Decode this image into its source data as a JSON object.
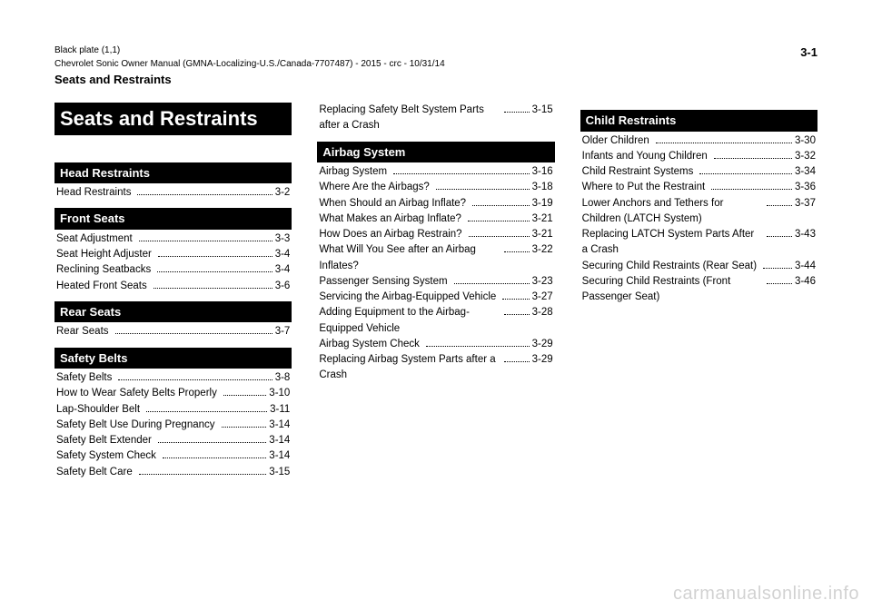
{
  "meta": {
    "headerLine1": "Black plate (1,1)",
    "headerLine2": "Chevrolet Sonic Owner Manual (GMNA-Localizing-U.S./Canada-7707487) - 2015 - crc - 10/31/14",
    "breadcrumb": "Seats and Restraints",
    "pageTop": "3-1",
    "chapterTitle": "Seats and Restraints",
    "watermark": "carmanualsonline.info"
  },
  "columns": [
    {
      "blocks": [
        {
          "type": "chapter"
        },
        {
          "type": "section",
          "text": "Head Restraints"
        },
        {
          "type": "item",
          "label": "Head Restraints",
          "page": "3-2"
        },
        {
          "type": "section",
          "text": "Front Seats"
        },
        {
          "type": "item",
          "label": "Seat Adjustment",
          "page": "3-3"
        },
        {
          "type": "item",
          "label": "Seat Height Adjuster",
          "page": "3-4"
        },
        {
          "type": "item",
          "label": "Reclining Seatbacks",
          "page": "3-4"
        },
        {
          "type": "item",
          "label": "Heated Front Seats",
          "page": "3-6"
        },
        {
          "type": "section",
          "text": "Rear Seats"
        },
        {
          "type": "item",
          "label": "Rear Seats",
          "page": "3-7"
        },
        {
          "type": "section",
          "text": "Safety Belts"
        },
        {
          "type": "item",
          "label": "Safety Belts",
          "page": "3-8"
        },
        {
          "type": "item",
          "label": "How to Wear Safety Belts Properly",
          "page": "3-10"
        },
        {
          "type": "item",
          "label": "Lap-Shoulder Belt",
          "page": "3-11"
        },
        {
          "type": "item",
          "label": "Safety Belt Use During Pregnancy",
          "page": "3-14"
        },
        {
          "type": "item",
          "label": "Safety Belt Extender",
          "page": "3-14"
        },
        {
          "type": "item",
          "label": "Safety System Check",
          "page": "3-14"
        },
        {
          "type": "item",
          "label": "Safety Belt Care",
          "page": "3-15"
        }
      ]
    },
    {
      "blocks": [
        {
          "type": "item",
          "label": "Replacing Safety Belt System Parts after a Crash",
          "page": "3-15"
        },
        {
          "type": "section",
          "text": "Airbag System"
        },
        {
          "type": "item",
          "label": "Airbag System",
          "page": "3-16"
        },
        {
          "type": "item",
          "label": "Where Are the Airbags?",
          "page": "3-18"
        },
        {
          "type": "item",
          "label": "When Should an Airbag Inflate?",
          "page": "3-19"
        },
        {
          "type": "item",
          "label": "What Makes an Airbag Inflate?",
          "page": "3-21"
        },
        {
          "type": "item",
          "label": "How Does an Airbag Restrain?",
          "page": "3-21"
        },
        {
          "type": "item",
          "label": "What Will You See after an Airbag Inflates?",
          "page": "3-22"
        },
        {
          "type": "item",
          "label": "Passenger Sensing System",
          "page": "3-23"
        },
        {
          "type": "item",
          "label": "Servicing the Airbag-Equipped Vehicle",
          "page": "3-27"
        },
        {
          "type": "item",
          "label": "Adding Equipment to the Airbag-Equipped Vehicle",
          "page": "3-28"
        },
        {
          "type": "item",
          "label": "Airbag System Check",
          "page": "3-29"
        },
        {
          "type": "item",
          "label": "Replacing Airbag System Parts after a Crash",
          "page": "3-29"
        }
      ]
    },
    {
      "blocks": [
        {
          "type": "section",
          "text": "Child Restraints"
        },
        {
          "type": "item",
          "label": "Older Children",
          "page": "3-30"
        },
        {
          "type": "item",
          "label": "Infants and Young Children",
          "page": "3-32"
        },
        {
          "type": "item",
          "label": "Child Restraint Systems",
          "page": "3-34"
        },
        {
          "type": "item",
          "label": "Where to Put the Restraint",
          "page": "3-36"
        },
        {
          "type": "item",
          "label": "Lower Anchors and Tethers for Children (LATCH System)",
          "page": "3-37"
        },
        {
          "type": "item",
          "label": "Replacing LATCH System Parts After a Crash",
          "page": "3-43"
        },
        {
          "type": "item",
          "label": "Securing Child Restraints (Rear Seat)",
          "page": "3-44"
        },
        {
          "type": "item",
          "label": "Securing Child Restraints (Front Passenger Seat)",
          "page": "3-46"
        }
      ]
    }
  ]
}
